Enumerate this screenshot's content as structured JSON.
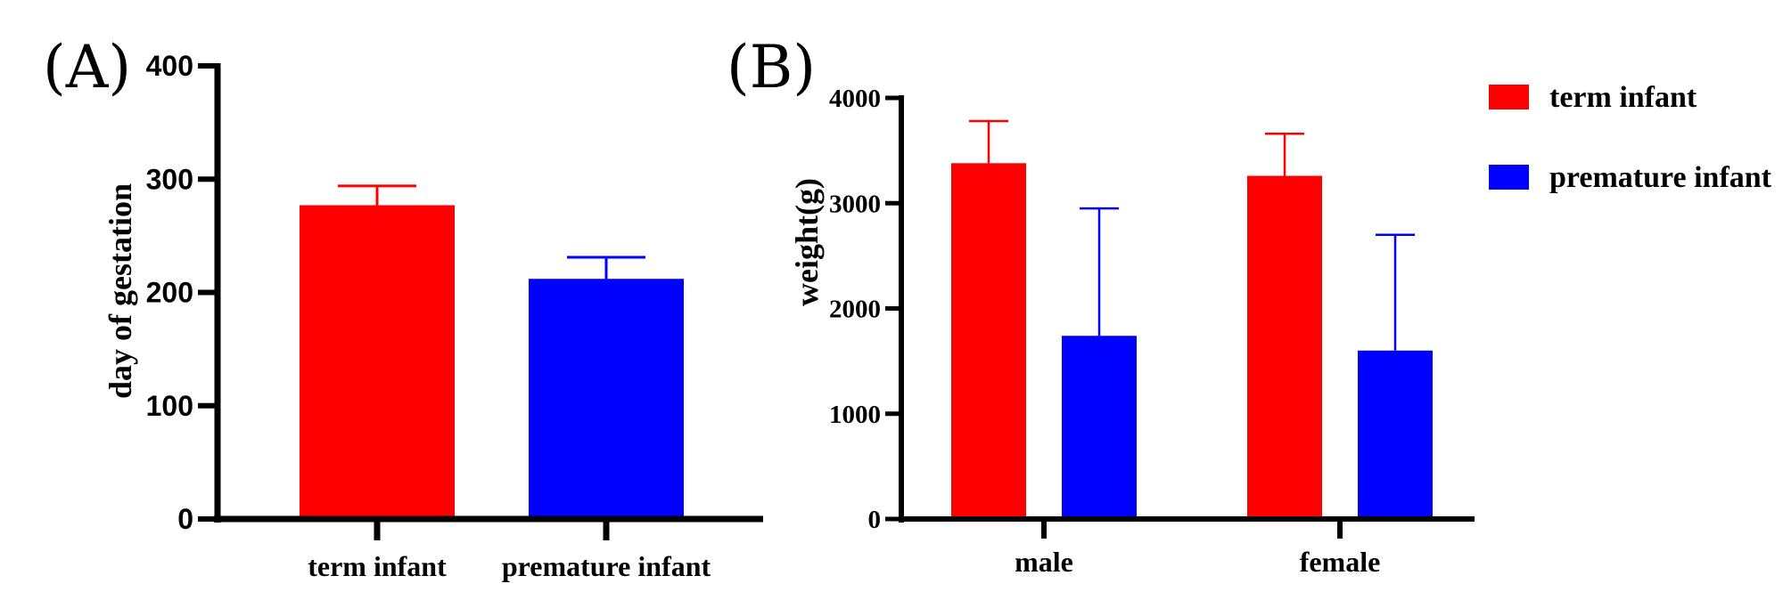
{
  "chart_data": [
    {
      "panel": "(A)",
      "type": "bar",
      "categories": [
        "term infant",
        "premature infant"
      ],
      "values": [
        277,
        212
      ],
      "errors": [
        17,
        19
      ],
      "colors": [
        "#ff0000",
        "#0000ff"
      ],
      "ylabel": "day of gestation",
      "xlabel": "",
      "ylim": [
        0,
        400
      ],
      "yticks": [
        "0",
        "100",
        "200",
        "300",
        "400"
      ],
      "grid": false
    },
    {
      "panel": "(B)",
      "type": "bar",
      "categories": [
        "male",
        "female"
      ],
      "series": [
        {
          "name": "term infant",
          "color": "#ff0000",
          "values": [
            3380,
            3260
          ],
          "errors": [
            400,
            400
          ]
        },
        {
          "name": "premature infant",
          "color": "#0000ff",
          "values": [
            1740,
            1600
          ],
          "errors": [
            1210,
            1100
          ]
        }
      ],
      "ylabel": "weight(g)",
      "xlabel": "",
      "ylim": [
        0,
        4000
      ],
      "yticks": [
        "0",
        "1000",
        "2000",
        "3000",
        "4000"
      ],
      "legend_position": "top-right",
      "grid": false
    }
  ]
}
